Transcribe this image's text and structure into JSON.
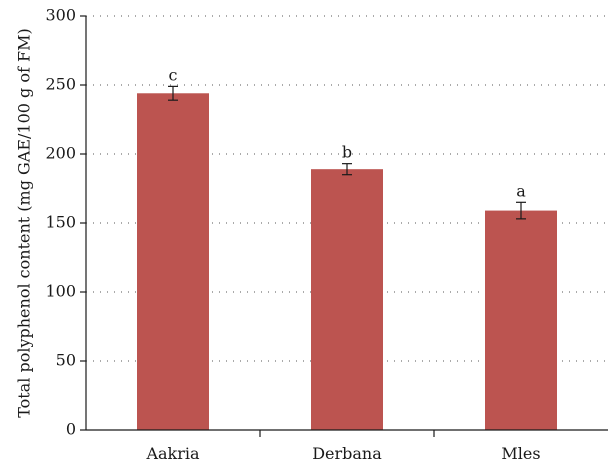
{
  "chart_data": {
    "type": "bar",
    "title": "",
    "xlabel": "",
    "ylabel": "Total polyphenol content (mg GAE/100 g of FM)",
    "categories": [
      "Aakria",
      "Derbana",
      "Mles"
    ],
    "values": [
      244,
      189,
      159
    ],
    "errors": [
      5,
      4,
      6
    ],
    "significance_labels": [
      "c",
      "b",
      "a"
    ],
    "ylim": [
      0,
      300
    ],
    "yticks": [
      0,
      50,
      100,
      150,
      200,
      250,
      300
    ],
    "ytick_labels": [
      "0",
      "50",
      "100",
      "150",
      "200",
      "250",
      "300"
    ],
    "grid": true,
    "legend": "none",
    "bar_color": "#bc5450"
  }
}
